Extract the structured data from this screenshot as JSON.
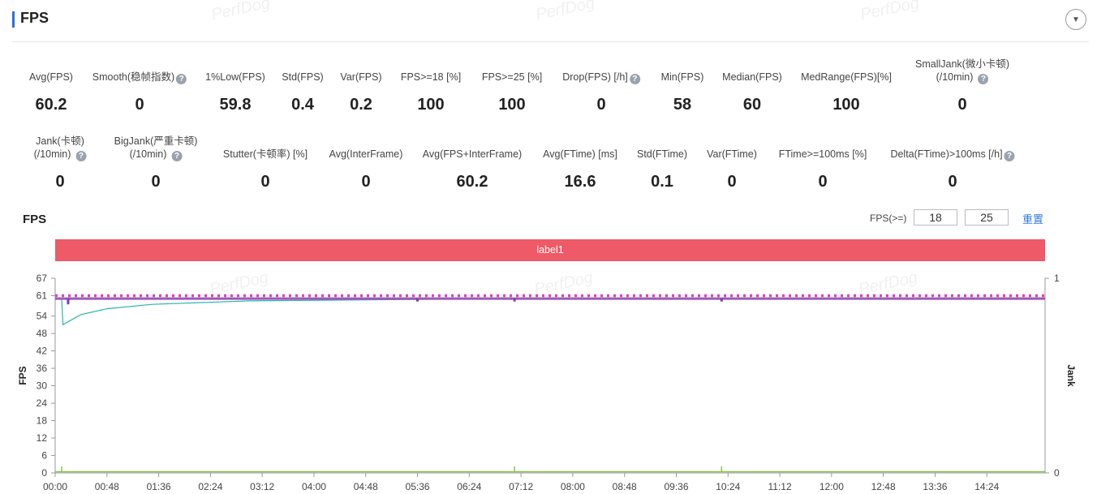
{
  "header": {
    "title": "FPS",
    "collapse_icon": "chevron-down-icon"
  },
  "watermark": "PerfDog",
  "metrics_row1": [
    {
      "label": "Avg(FPS)",
      "value": "60.2",
      "help": false
    },
    {
      "label": "Smooth(稳帧指数)",
      "value": "0",
      "help": true
    },
    {
      "label": "1%Low(FPS)",
      "value": "59.8",
      "help": false
    },
    {
      "label": "Std(FPS)",
      "value": "0.4",
      "help": false
    },
    {
      "label": "Var(FPS)",
      "value": "0.2",
      "help": false
    },
    {
      "label": "FPS>=18 [%]",
      "value": "100",
      "help": false
    },
    {
      "label": "FPS>=25 [%]",
      "value": "100",
      "help": false
    },
    {
      "label": "Drop(FPS) [/h]",
      "value": "0",
      "help": true
    },
    {
      "label": "Min(FPS)",
      "value": "58",
      "help": false
    },
    {
      "label": "Median(FPS)",
      "value": "60",
      "help": false
    },
    {
      "label": "MedRange(FPS)[%]",
      "value": "100",
      "help": false
    },
    {
      "label": "SmallJank(微小卡顿)",
      "label2": "(/10min)",
      "value": "0",
      "help": true
    }
  ],
  "metrics_row2": [
    {
      "label": "Jank(卡顿)",
      "label2": "(/10min)",
      "value": "0",
      "help": true
    },
    {
      "label": "BigJank(严重卡顿)",
      "label2": "(/10min)",
      "value": "0",
      "help": true
    },
    {
      "label": "Stutter(卡顿率) [%]",
      "value": "0",
      "help": false
    },
    {
      "label": "Avg(InterFrame)",
      "value": "0",
      "help": false
    },
    {
      "label": "Avg(FPS+InterFrame)",
      "value": "60.2",
      "help": false
    },
    {
      "label": "Avg(FTime) [ms]",
      "value": "16.6",
      "help": false
    },
    {
      "label": "Std(FTime)",
      "value": "0.1",
      "help": false
    },
    {
      "label": "Var(FTime)",
      "value": "0",
      "help": false
    },
    {
      "label": "FTime>=100ms [%]",
      "value": "0",
      "help": false
    },
    {
      "label": "Delta(FTime)>100ms [/h]",
      "value": "0",
      "help": true
    }
  ],
  "chart_section": {
    "title": "FPS",
    "threshold_label": "FPS(>=)",
    "threshold_1": "18",
    "threshold_2": "25",
    "reset_label": "重置",
    "label_bar": "label1"
  },
  "chart_data": {
    "type": "line",
    "ylabel": "FPS",
    "y2label": "Jank",
    "ylim": [
      0,
      67
    ],
    "y_ticks": [
      "0",
      "6",
      "12",
      "18",
      "24",
      "30",
      "36",
      "42",
      "48",
      "54",
      "61",
      "67"
    ],
    "y2_ticks": [
      "0",
      "1"
    ],
    "x_ticks": [
      "00:00",
      "00:48",
      "01:36",
      "02:24",
      "03:12",
      "04:00",
      "04:48",
      "05:36",
      "06:24",
      "07:12",
      "08:00",
      "08:48",
      "09:36",
      "10:24",
      "11:12",
      "12:00",
      "12:48",
      "13:36",
      "14:24"
    ],
    "x_range_minutes": [
      0,
      15.3
    ],
    "colors": {
      "fps": "#9b59b6",
      "fps_dots": "#7b3fa0",
      "threshold": "#e040c0",
      "avg": "#2bb5aa",
      "bottom": "#8bc34a",
      "label_bar": "#ee5a68"
    },
    "series": [
      {
        "name": "FPS",
        "x_minutes": [
          0,
          0.12,
          0.2,
          5.6,
          7.1,
          10.3,
          15.3
        ],
        "values": [
          60,
          60,
          58,
          59,
          59,
          59,
          60
        ]
      },
      {
        "name": "Avg(FPS)",
        "x_minutes": [
          0.1,
          0.12,
          0.2,
          0.4,
          0.8,
          1.5,
          3,
          6,
          10,
          15.3
        ],
        "values": [
          60,
          51,
          52,
          54.5,
          56.5,
          58,
          59.2,
          59.8,
          60,
          60.2
        ]
      }
    ],
    "fps_threshold_line": 61,
    "jank_markers_minutes": [
      0.1,
      7.1,
      10.3
    ]
  }
}
